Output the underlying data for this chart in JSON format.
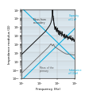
{
  "xlabel": "Frequency (Hz)",
  "ylabel": "Impedance modulus (Ω)",
  "xlim": [
    100,
    100000000.0
  ],
  "ylim": [
    0.01,
    1000000.0
  ],
  "bg_color": "#dce8f0",
  "fig_color": "#ffffff",
  "grid_color": "#aaaaaa",
  "cap_color": "#00aadd",
  "ind_color": "#00aadd",
  "sec_color": "#111111",
  "pri_color": "#666666",
  "C_nF": 1e-09,
  "L_uH": 1e-05,
  "annotation_cap": "Capacity\nof 1 nF",
  "annotation_ind": "Inductance\nof 10μH",
  "annotation_sec": "Meas from\nsecondary",
  "annotation_pri": "Meas of the\nprimary",
  "f_sec_x": [
    100,
    200,
    500,
    1000,
    2000,
    5000,
    10000,
    20000,
    50000,
    100000,
    150000,
    200000,
    250000,
    280000,
    300000,
    320000,
    350000,
    380000,
    400000,
    420000,
    450000,
    500000,
    600000,
    700000,
    800000,
    1000000,
    2000000,
    5000000,
    10000000,
    50000000,
    100000000
  ],
  "f_sec_y": [
    6,
    12,
    30,
    60,
    120,
    300,
    600,
    1200,
    3000,
    8000,
    15000,
    30000,
    80000,
    200000,
    900000,
    300000,
    150000,
    50000,
    90000,
    40000,
    20000,
    12000,
    6000,
    9000,
    5000,
    4000,
    2000,
    1000,
    700,
    350,
    250
  ],
  "f_pri_x": [
    100,
    500,
    1000,
    5000,
    10000,
    50000,
    100000,
    200000,
    300000,
    400000,
    500000,
    1000000,
    5000000,
    10000000,
    100000000
  ],
  "f_pri_y": [
    0.04,
    0.2,
    0.4,
    2,
    4,
    20,
    40,
    100,
    60,
    90,
    50,
    30,
    10,
    7,
    5
  ]
}
